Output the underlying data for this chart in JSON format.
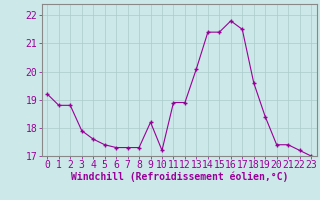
{
  "x": [
    0,
    1,
    2,
    3,
    4,
    5,
    6,
    7,
    8,
    9,
    10,
    11,
    12,
    13,
    14,
    15,
    16,
    17,
    18,
    19,
    20,
    21,
    22,
    23
  ],
  "y": [
    19.2,
    18.8,
    18.8,
    17.9,
    17.6,
    17.4,
    17.3,
    17.3,
    17.3,
    18.2,
    17.2,
    18.9,
    18.9,
    20.1,
    21.4,
    21.4,
    21.8,
    21.5,
    19.6,
    18.4,
    17.4,
    17.4,
    17.2,
    17.0
  ],
  "line_color": "#990099",
  "marker": "+",
  "marker_size": 3,
  "marker_linewidth": 1.0,
  "background_color": "#cce8e8",
  "grid_color": "#aacccc",
  "xlabel": "Windchill (Refroidissement éolien,°C)",
  "ylabel": "",
  "title": "",
  "xlim": [
    -0.5,
    23.5
  ],
  "ylim": [
    17.0,
    22.4
  ],
  "yticks": [
    17,
    18,
    19,
    20,
    21,
    22
  ],
  "xticks": [
    0,
    1,
    2,
    3,
    4,
    5,
    6,
    7,
    8,
    9,
    10,
    11,
    12,
    13,
    14,
    15,
    16,
    17,
    18,
    19,
    20,
    21,
    22,
    23
  ],
  "xlabel_fontsize": 7,
  "tick_fontsize": 7,
  "tick_color": "#990099",
  "label_color": "#990099",
  "spine_color": "#888888",
  "line_width": 0.8
}
